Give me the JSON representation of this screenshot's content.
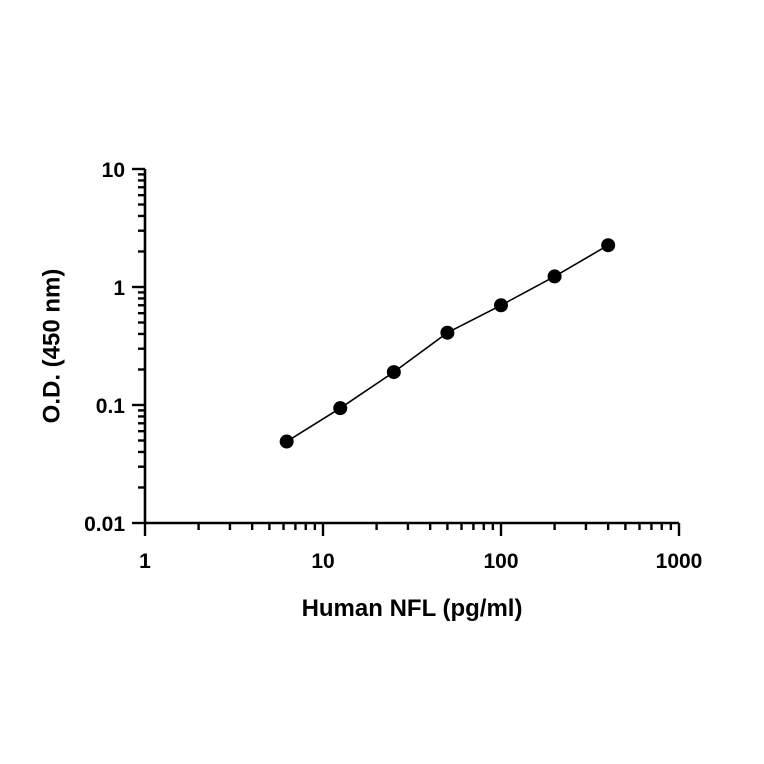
{
  "chart_data": {
    "type": "scatter",
    "xlabel": "Human NFL (pg/ml)",
    "ylabel": "O.D. (450 nm)",
    "x_scale": "log",
    "y_scale": "log",
    "xlim": [
      1,
      1000
    ],
    "ylim": [
      0.01,
      10
    ],
    "x_ticks": [
      {
        "value": 1,
        "label": "1"
      },
      {
        "value": 10,
        "label": "10"
      },
      {
        "value": 100,
        "label": "100"
      },
      {
        "value": 1000,
        "label": "1000"
      }
    ],
    "y_ticks": [
      {
        "value": 0.01,
        "label": "0.01"
      },
      {
        "value": 0.1,
        "label": "0.1"
      },
      {
        "value": 1,
        "label": "1"
      },
      {
        "value": 10,
        "label": "10"
      }
    ],
    "series": [
      {
        "x": [
          6.25,
          12.5,
          25,
          50,
          100,
          200,
          400
        ],
        "y": [
          0.049,
          0.094,
          0.19,
          0.41,
          0.7,
          1.23,
          2.26
        ]
      }
    ],
    "fit_line": true,
    "grid": false,
    "colors": {
      "marker": "#000000",
      "line": "#000000"
    }
  }
}
